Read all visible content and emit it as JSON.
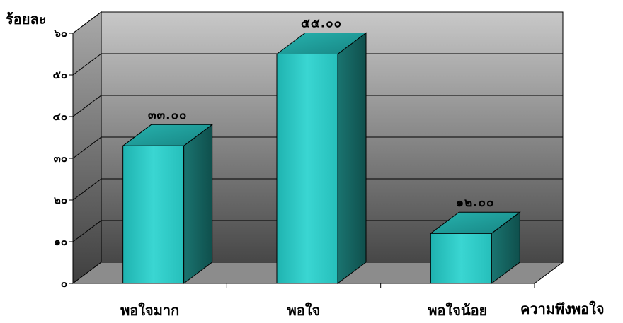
{
  "chart_data": {
    "type": "bar",
    "style": "3d-column",
    "ylabel": "ร้อยละ",
    "xlabel": "ความพึงพอใจ",
    "categories": [
      "พอใจมาก",
      "พอใจ",
      "พอใจน้อย"
    ],
    "values": [
      33,
      55,
      12
    ],
    "data_labels": [
      "๓๓.๐๐",
      "๕๕.๐๐",
      "๑๒.๐๐"
    ],
    "y_ticks": [
      0,
      10,
      20,
      30,
      40,
      50,
      60
    ],
    "y_tick_labels": [
      "๐",
      "๑๐",
      "๒๐",
      "๓๐",
      "๔๐",
      "๕๐",
      "๖๐"
    ],
    "ylim": [
      0,
      60
    ],
    "grid": true,
    "legend": "none",
    "colors": {
      "bar_front": "#2ec8c4",
      "bar_side": "#136461",
      "bar_top": "#20a5a2",
      "wall_top": "#c4c4c4",
      "wall_bottom": "#4a4a4a",
      "floor": "#8a8a8a",
      "grid": "#000000"
    }
  }
}
